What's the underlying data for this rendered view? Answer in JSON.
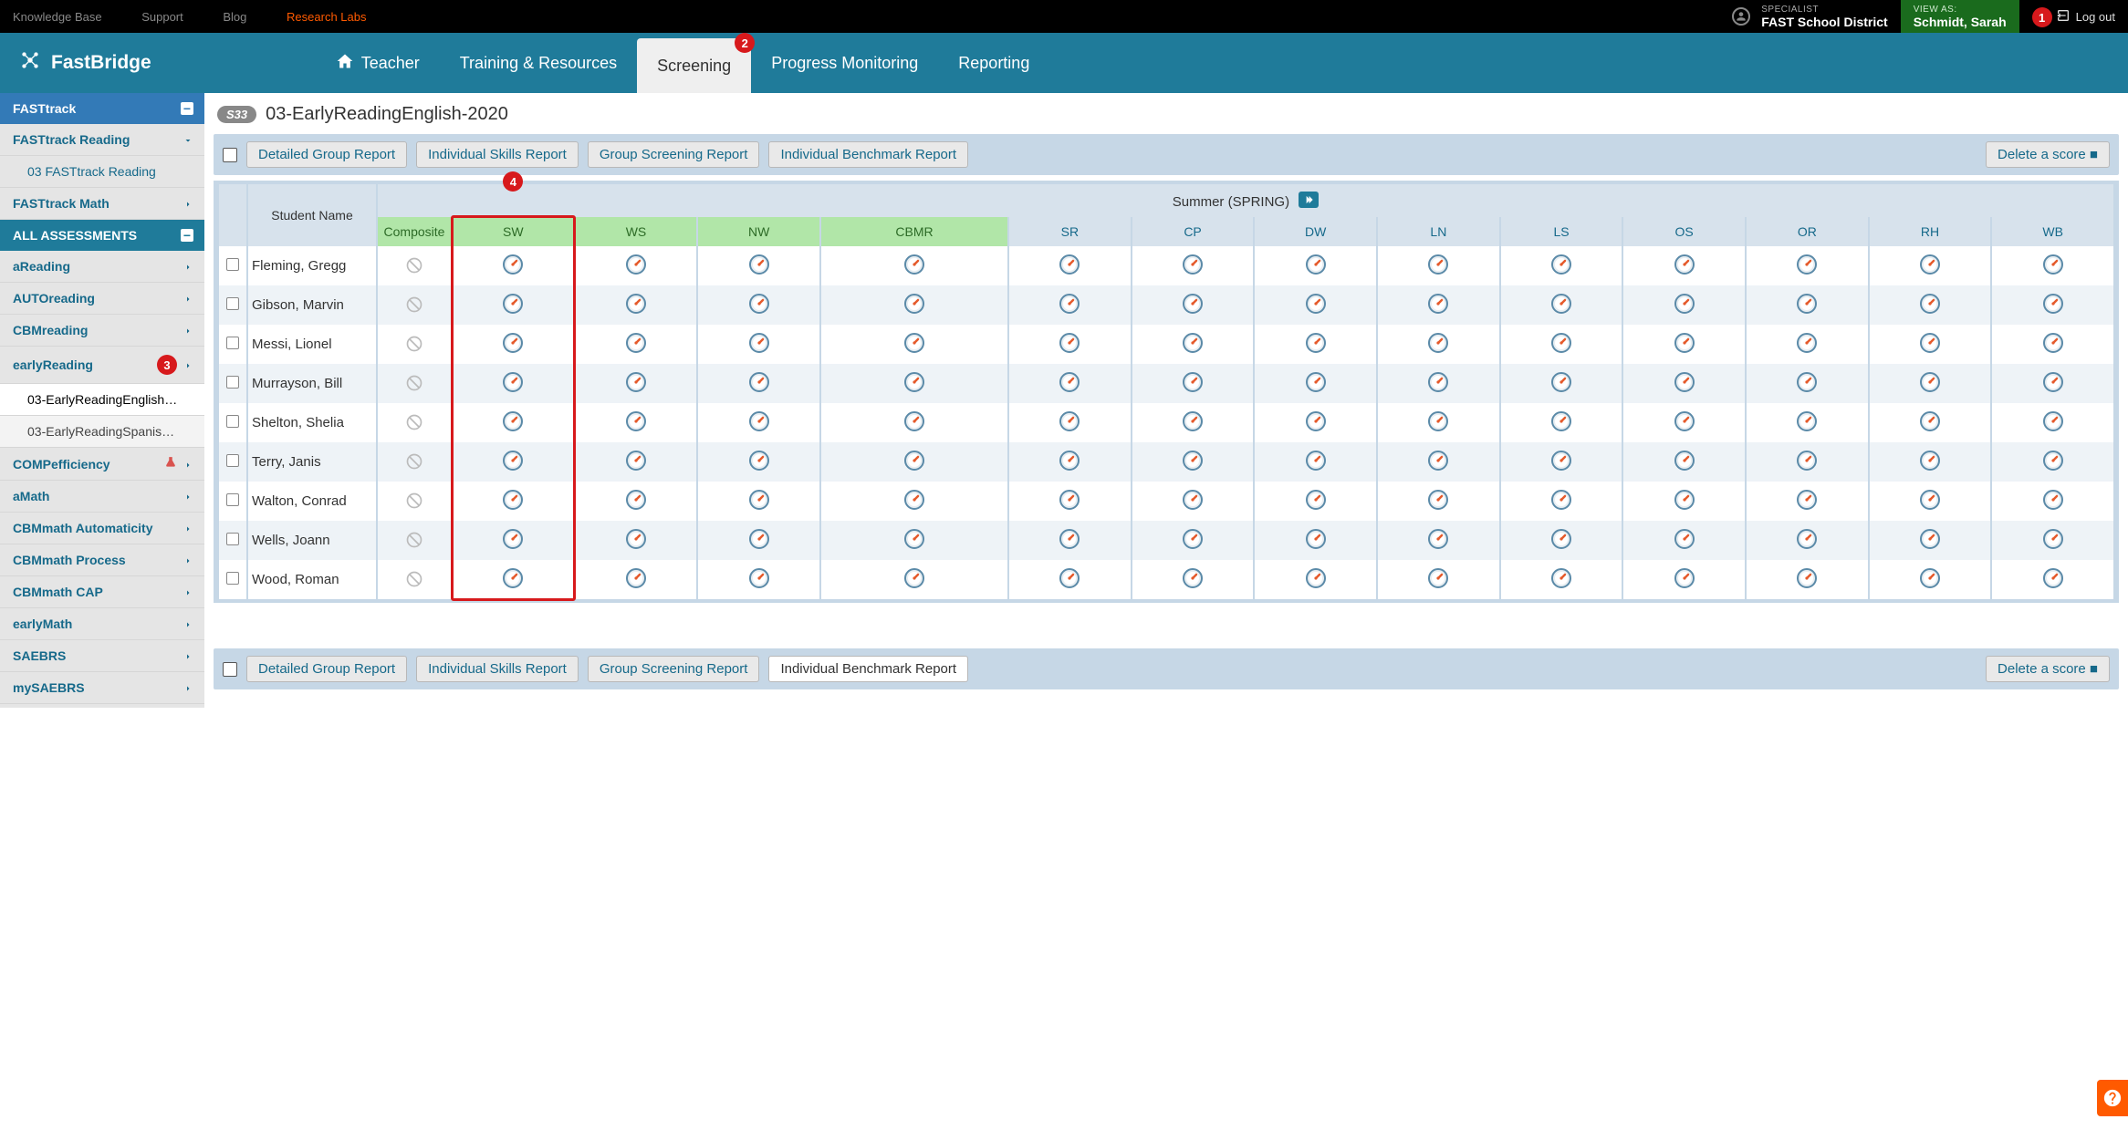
{
  "colors": {
    "topbar_bg": "#000000",
    "header_bg": "#1f7b9a",
    "sidebar_bg": "#e5e5e5",
    "accent": "#16698a",
    "danger": "#d7191c",
    "green_cell": "#b1e6a8",
    "row_alt": "#eef3f7",
    "panel_bg": "#c6d7e6",
    "viewas_bg": "#1a6b1d",
    "research_link": "#ff5a00",
    "help_fab": "#ff5a00"
  },
  "annotations": [
    "1",
    "2",
    "3",
    "4"
  ],
  "topnav": {
    "links": [
      "Knowledge Base",
      "Support",
      "Blog",
      "Research Labs"
    ],
    "specialist_label": "SPECIALIST",
    "specialist_value": "FAST School District",
    "viewas_label": "VIEW AS:",
    "viewas_value": "Schmidt, Sarah",
    "logout": "Log out"
  },
  "brand": "FastBridge",
  "mainnav": {
    "tabs": [
      "Teacher",
      "Training & Resources",
      "Screening",
      "Progress Monitoring",
      "Reporting"
    ],
    "active_index": 2
  },
  "sidebar": {
    "section1": {
      "label": "FASTtrack"
    },
    "section1a": {
      "label": "FASTtrack Reading"
    },
    "section1a_sub": {
      "label": "03 FASTtrack Reading"
    },
    "section1b": {
      "label": "FASTtrack Math"
    },
    "all_assessments": "ALL ASSESSMENTS",
    "items": [
      {
        "label": "aReading"
      },
      {
        "label": "AUTOreading"
      },
      {
        "label": "CBMreading"
      },
      {
        "label": "earlyReading",
        "badge": "3"
      },
      {
        "label": "03-EarlyReadingEnglish…",
        "sub": true,
        "active": true
      },
      {
        "label": "03-EarlyReadingSpanis…",
        "sub": true
      },
      {
        "label": "COMPefficiency",
        "flask": true
      },
      {
        "label": "aMath"
      },
      {
        "label": "CBMmath Automaticity"
      },
      {
        "label": "CBMmath Process"
      },
      {
        "label": "CBMmath CAP"
      },
      {
        "label": "earlyMath"
      },
      {
        "label": "SAEBRS"
      },
      {
        "label": "mySAEBRS"
      }
    ]
  },
  "page": {
    "badge": "S33",
    "title": "03-EarlyReadingEnglish-2020"
  },
  "report_buttons": {
    "b1": "Detailed Group Report",
    "b2": "Individual Skills Report",
    "b3": "Group Screening Report",
    "b4": "Individual Benchmark Report",
    "delete": "Delete a score ■"
  },
  "table": {
    "student_label": "Student Name",
    "season": "Summer (SPRING)",
    "columns": [
      "Composite",
      "SW",
      "WS",
      "NW",
      "CBMR",
      "SR",
      "CP",
      "DW",
      "LN",
      "LS",
      "OS",
      "OR",
      "RH",
      "WB"
    ],
    "green_count": 5,
    "highlight_col_index": 1,
    "students": [
      "Fleming, Gregg",
      "Gibson, Marvin",
      "Messi, Lionel",
      "Murrayson, Bill",
      "Shelton, Shelia",
      "Terry, Janis",
      "Walton, Conrad",
      "Wells, Joann",
      "Wood, Roman"
    ]
  }
}
